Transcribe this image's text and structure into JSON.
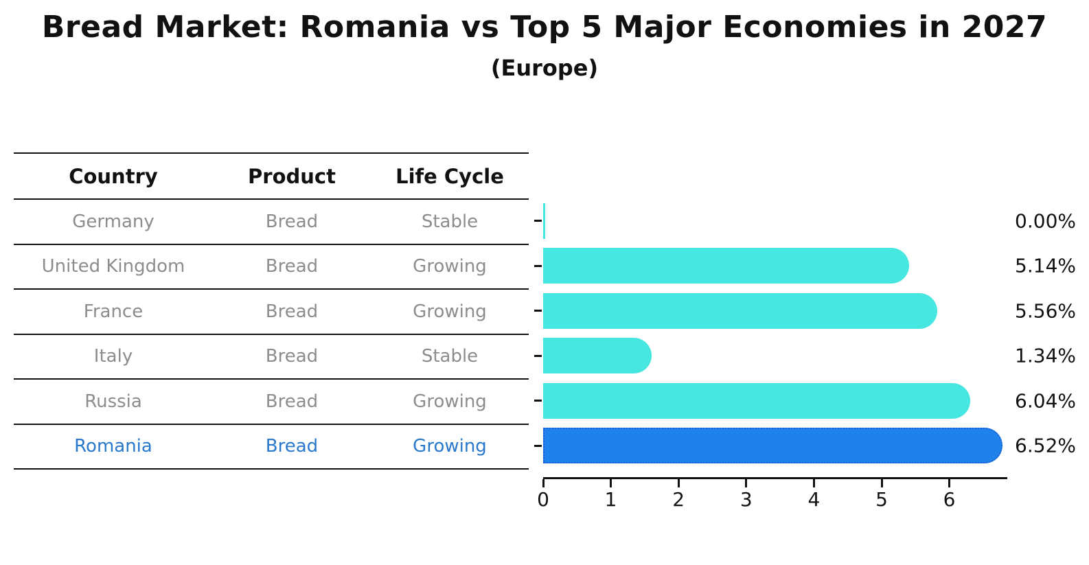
{
  "title": "Bread Market: Romania vs Top 5 Major Economies in 2027",
  "subtitle": "(Europe)",
  "table": {
    "headers": [
      "Country",
      "Product",
      "Life Cycle"
    ],
    "rows": [
      {
        "country": "Germany",
        "product": "Bread",
        "life_cycle": "Stable",
        "highlight": false
      },
      {
        "country": "United Kingdom",
        "product": "Bread",
        "life_cycle": "Growing",
        "highlight": false
      },
      {
        "country": "France",
        "product": "Bread",
        "life_cycle": "Growing",
        "highlight": false
      },
      {
        "country": "Italy",
        "product": "Bread",
        "life_cycle": "Stable",
        "highlight": false
      },
      {
        "country": "Russia",
        "product": "Bread",
        "life_cycle": "Growing",
        "highlight": false
      },
      {
        "country": "Romania",
        "product": "Bread",
        "life_cycle": "Growing",
        "highlight": true
      }
    ]
  },
  "chart_data": {
    "type": "bar",
    "orientation": "horizontal",
    "title": "Bread Market: Romania vs Top 5 Major Economies in 2027",
    "subtitle": "(Europe)",
    "categories": [
      "Germany",
      "United Kingdom",
      "France",
      "Italy",
      "Russia",
      "Romania"
    ],
    "values": [
      0.0,
      5.14,
      5.56,
      1.34,
      6.04,
      6.52
    ],
    "value_labels": [
      "0.00%",
      "5.14%",
      "5.56%",
      "1.34%",
      "6.04%",
      "6.52%"
    ],
    "x_ticks": [
      "0",
      "1",
      "2",
      "3",
      "4",
      "5",
      "6"
    ],
    "xlim": [
      0,
      6.85
    ],
    "grid": false,
    "legend": "none",
    "highlight_category": "Romania",
    "colors": {
      "bar": "#46e6e1",
      "highlight_bar": "#1e82ea",
      "highlight_border": "#1a5fd6",
      "highlight_text": "#2878cb",
      "row_text": "#8c8c8c",
      "header_text": "#111111",
      "axis": "#111111"
    }
  }
}
